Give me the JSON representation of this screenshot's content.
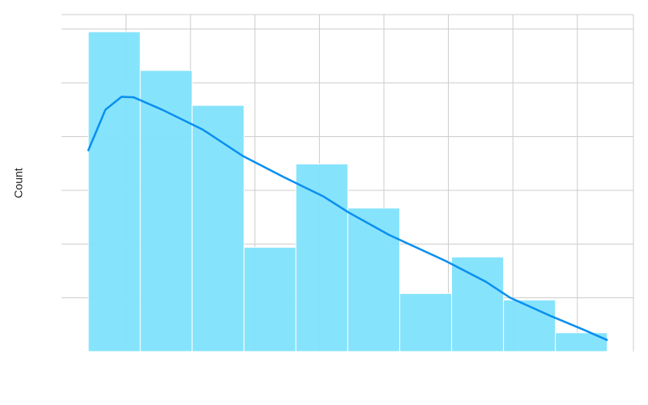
{
  "chart_data": {
    "type": "histogram",
    "y_label": "Count",
    "bins": [
      0.415,
      1.22,
      2.025,
      2.83,
      3.635,
      4.44,
      5.245,
      6.05,
      6.855,
      7.66,
      8.465
    ],
    "values": [
      5.95,
      5.23,
      4.58,
      1.94,
      3.49,
      2.67,
      1.08,
      1.76,
      0.96,
      0.35
    ],
    "color": "#7fe1fc",
    "edgecolor": "#ffffff",
    "kde": {
      "color": "#0a8ff0",
      "x": [
        0.41,
        0.68,
        0.93,
        1.12,
        1.56,
        2.19,
        2.81,
        3.44,
        4.07,
        4.45,
        5.08,
        5.95,
        6.58,
        6.96,
        7.59,
        8.09,
        8.47
      ],
      "values": [
        3.73,
        4.5,
        4.74,
        4.73,
        4.5,
        4.13,
        3.64,
        3.25,
        2.88,
        2.59,
        2.17,
        1.69,
        1.3,
        1.0,
        0.66,
        0.41,
        0.21
      ]
    },
    "xlim": [
      0,
      8.87
    ],
    "ylim": [
      0,
      6.27
    ],
    "xticks": [
      1,
      2,
      3,
      4,
      5,
      6,
      7,
      8
    ],
    "yticks": [
      1,
      2,
      3,
      4,
      5,
      6
    ],
    "grid": true
  }
}
